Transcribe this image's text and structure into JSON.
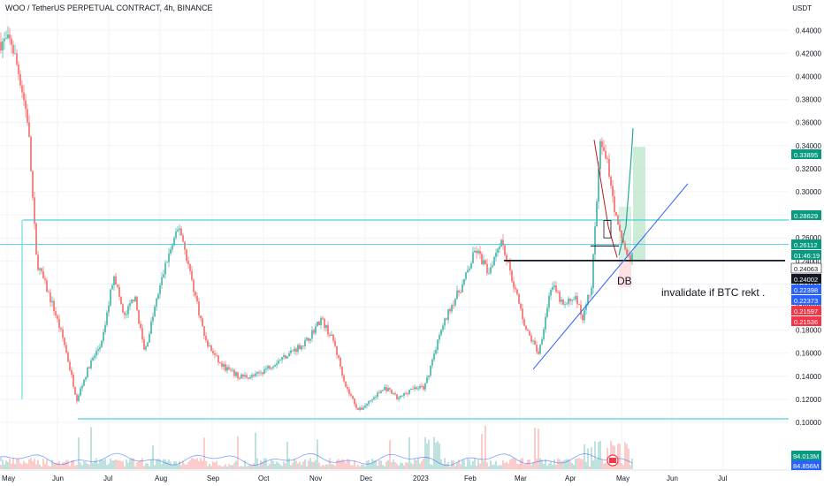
{
  "header": {
    "symbol": "WOO / TetherUS PERPETUAL CONTRACT, 4h, BINANCE",
    "currency": "USDT"
  },
  "annotations": {
    "pattern": "DB",
    "note": "invalidate if BTC rekt ."
  },
  "colors": {
    "up": "#26a69a",
    "down": "#ef5350",
    "trendline": "#2962ff",
    "hline": "#26c6da",
    "tp_zone": "#b7e4c7",
    "sl_zone": "#ffcdd2"
  },
  "chart_data": {
    "type": "candlestick",
    "ylim": [
      0.09,
      0.46
    ],
    "y_ticks": [
      0.1,
      0.12,
      0.14,
      0.16,
      0.18,
      0.2,
      0.22,
      0.24,
      0.26,
      0.28,
      0.3,
      0.32,
      0.34,
      0.36,
      0.38,
      0.4,
      0.42,
      0.44
    ],
    "y_tick_labels": [
      "0.10000",
      "0.12000",
      "0.14000",
      "0.16000",
      "0.18000",
      "0.20000",
      "0.22000",
      "0.24000",
      "0.26000",
      "0.28000",
      "0.30000",
      "0.32000",
      "0.34000",
      "0.36000",
      "0.38000",
      "0.40000",
      "0.42000",
      "0.44000"
    ],
    "x_tick_labels": [
      "May",
      "Jun",
      "Jul",
      "Aug",
      "Sep",
      "Oct",
      "Nov",
      "Dec",
      "2023",
      "Feb",
      "Mar",
      "Apr",
      "May",
      "Jun",
      "Jul"
    ],
    "price_path": [
      [
        "May",
        0.43
      ],
      [
        "May",
        0.4
      ],
      [
        "May",
        0.36
      ],
      [
        "May",
        0.24
      ],
      [
        "May",
        0.22
      ],
      [
        "May",
        0.2
      ],
      [
        "Jun",
        0.17
      ],
      [
        "Jun",
        0.12
      ],
      [
        "Jun",
        0.15
      ],
      [
        "Jun",
        0.17
      ],
      [
        "Jul",
        0.23
      ],
      [
        "Jul",
        0.19
      ],
      [
        "Jul",
        0.21
      ],
      [
        "Jul",
        0.16
      ],
      [
        "Jul",
        0.2
      ],
      [
        "Aug",
        0.24
      ],
      [
        "Aug",
        0.27
      ],
      [
        "Aug",
        0.22
      ],
      [
        "Aug",
        0.17
      ],
      [
        "Sep",
        0.15
      ],
      [
        "Sep",
        0.14
      ],
      [
        "Sep",
        0.14
      ],
      [
        "Oct",
        0.15
      ],
      [
        "Oct",
        0.16
      ],
      [
        "Oct",
        0.17
      ],
      [
        "Nov",
        0.19
      ],
      [
        "Nov",
        0.17
      ],
      [
        "Nov",
        0.13
      ],
      [
        "Nov",
        0.11
      ],
      [
        "Dec",
        0.12
      ],
      [
        "Dec",
        0.13
      ],
      [
        "Dec",
        0.12
      ],
      [
        "Dec",
        0.13
      ],
      [
        "2023",
        0.13
      ],
      [
        "2023",
        0.17
      ],
      [
        "2023",
        0.2
      ],
      [
        "2023",
        0.22
      ],
      [
        "Feb",
        0.25
      ],
      [
        "Feb",
        0.23
      ],
      [
        "Feb",
        0.26
      ],
      [
        "Feb",
        0.22
      ],
      [
        "Mar",
        0.18
      ],
      [
        "Mar",
        0.16
      ],
      [
        "Mar",
        0.22
      ],
      [
        "Mar",
        0.2
      ],
      [
        "Apr",
        0.21
      ],
      [
        "Apr",
        0.19
      ],
      [
        "Apr",
        0.22
      ],
      [
        "Apr",
        0.34
      ],
      [
        "Apr",
        0.32
      ],
      [
        "Apr",
        0.27
      ],
      [
        "May",
        0.24
      ],
      [
        "May",
        0.29
      ],
      [
        "May",
        0.35
      ]
    ],
    "horizontal_lines": [
      0.2755,
      0.2545,
      0.2406,
      0.24,
      0.1031
    ],
    "trendline": {
      "from": [
        "Mar",
        0.146
      ],
      "to": [
        "Jun",
        0.307
      ]
    },
    "zones": {
      "target": [
        0.2406,
        0.339
      ],
      "stop": [
        0.2154,
        0.2406
      ]
    },
    "price_labels": [
      {
        "value": "0.33895",
        "type": "up"
      },
      {
        "value": "0.28629",
        "type": "up"
      },
      {
        "value": "0.26112",
        "type": "up"
      },
      {
        "value": "01:46:19",
        "type": "up"
      },
      {
        "value": "0.24063",
        "type": "neutral"
      },
      {
        "value": "0.24002",
        "type": "dark"
      },
      {
        "value": "0.22398",
        "type": "blue"
      },
      {
        "value": "0.22373",
        "type": "blue"
      },
      {
        "value": "0.21597",
        "type": "down"
      },
      {
        "value": "0.21536",
        "type": "down"
      }
    ],
    "volume_labels": [
      {
        "value": "94.013M",
        "type": "up"
      },
      {
        "value": "84.856M",
        "type": "blue"
      }
    ]
  }
}
